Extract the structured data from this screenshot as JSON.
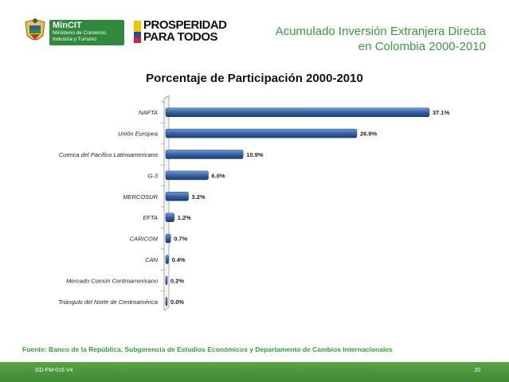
{
  "header": {
    "logo1_name": "MinCIT",
    "logo1_sub_line1": "Ministerio de Comercio,",
    "logo1_sub_line2": "Industria y Turismo",
    "logo2_line1": "PROSPERIDAD",
    "logo2_line2": "PARA TODOS",
    "title_line1": "Acumulado Inversión Extranjera Directa",
    "title_line2": "en Colombia 2000-2010"
  },
  "chart_data": {
    "type": "bar",
    "orientation": "horizontal",
    "title": "Porcentaje de Participación 2000-2010",
    "categories": [
      "NAFTA",
      "Unión Europea",
      "Cuenca del Pacífico Latinoamericano",
      "G-3",
      "MERCOSUR",
      "EFTA",
      "CARICOM",
      "CAN",
      "Mercado Común Centroamericano",
      "Triángulo del Norte de Centroamérica"
    ],
    "values": [
      37.1,
      26.9,
      10.9,
      6.0,
      3.2,
      1.2,
      0.7,
      0.4,
      0.2,
      0.0
    ],
    "value_labels": [
      "37.1%",
      "26.9%",
      "10.9%",
      "6.0%",
      "3.2%",
      "1.2%",
      "0.7%",
      "0.4%",
      "0.2%",
      "0.0%"
    ],
    "xlim": [
      0,
      37.1
    ],
    "grid": false,
    "legend": "none",
    "bar_color": "#2f5d9e"
  },
  "source_note": "Fuente: Banco de la República, Subgerencia de Estudios Económicos y Departamento de Cambios Internacionales",
  "footer": {
    "code": "GD-FM-016 V4",
    "page": "20"
  },
  "colors": {
    "accent_green": "#3b9a3d",
    "footer_green": "#4a9a3c"
  }
}
